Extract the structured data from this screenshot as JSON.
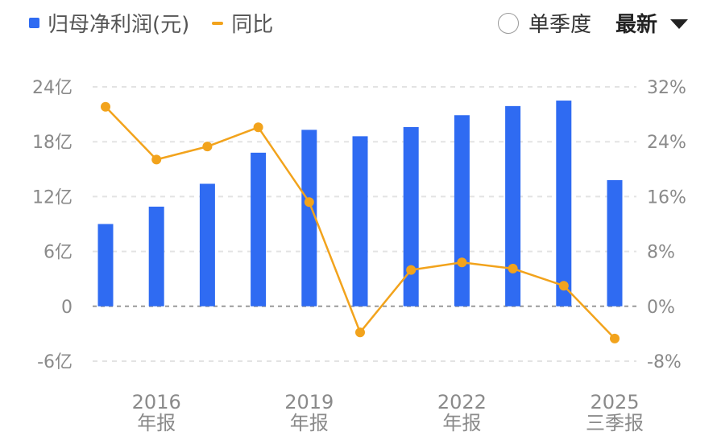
{
  "legend": {
    "bar_label": "归母净利润(元)",
    "line_label": "同比"
  },
  "controls": {
    "single_quarter_label": "单季度",
    "latest_label": "最新"
  },
  "colors": {
    "bar": "#2f6bf2",
    "line": "#f2a31c",
    "grid": "#e3e3e3",
    "zero_line": "#999999",
    "tick_text": "#8a8a8a"
  },
  "chart_data": {
    "type": "bar",
    "title": "",
    "left_axis": {
      "ylim": [
        -6,
        24
      ],
      "ticks": [
        -6,
        0,
        6,
        12,
        18,
        24
      ],
      "tick_labels": [
        "-6亿",
        "0",
        "6亿",
        "12亿",
        "18亿",
        "24亿"
      ]
    },
    "right_axis": {
      "ylim": [
        -8,
        32
      ],
      "ticks": [
        -8,
        0,
        8,
        16,
        24,
        32
      ],
      "tick_labels": [
        "-8%",
        "0%",
        "8%",
        "16%",
        "24%",
        "32%"
      ]
    },
    "x_labels": [
      {
        "index": 1,
        "line1": "2016",
        "line2": "年报"
      },
      {
        "index": 4,
        "line1": "2019",
        "line2": "年报"
      },
      {
        "index": 7,
        "line1": "2022",
        "line2": "年报"
      },
      {
        "index": 10,
        "line1": "2025",
        "line2": "三季报"
      }
    ],
    "grid": true,
    "series": [
      {
        "name": "归母净利润(元)",
        "type": "bar",
        "axis": "left",
        "values": [
          9.0,
          10.9,
          13.4,
          16.8,
          19.3,
          18.6,
          19.6,
          20.9,
          21.9,
          22.5,
          13.8
        ]
      },
      {
        "name": "同比",
        "type": "line",
        "axis": "right",
        "values": [
          29.1,
          21.4,
          23.3,
          26.1,
          15.2,
          -3.8,
          5.3,
          6.4,
          5.5,
          3.0,
          -4.7
        ]
      }
    ]
  }
}
